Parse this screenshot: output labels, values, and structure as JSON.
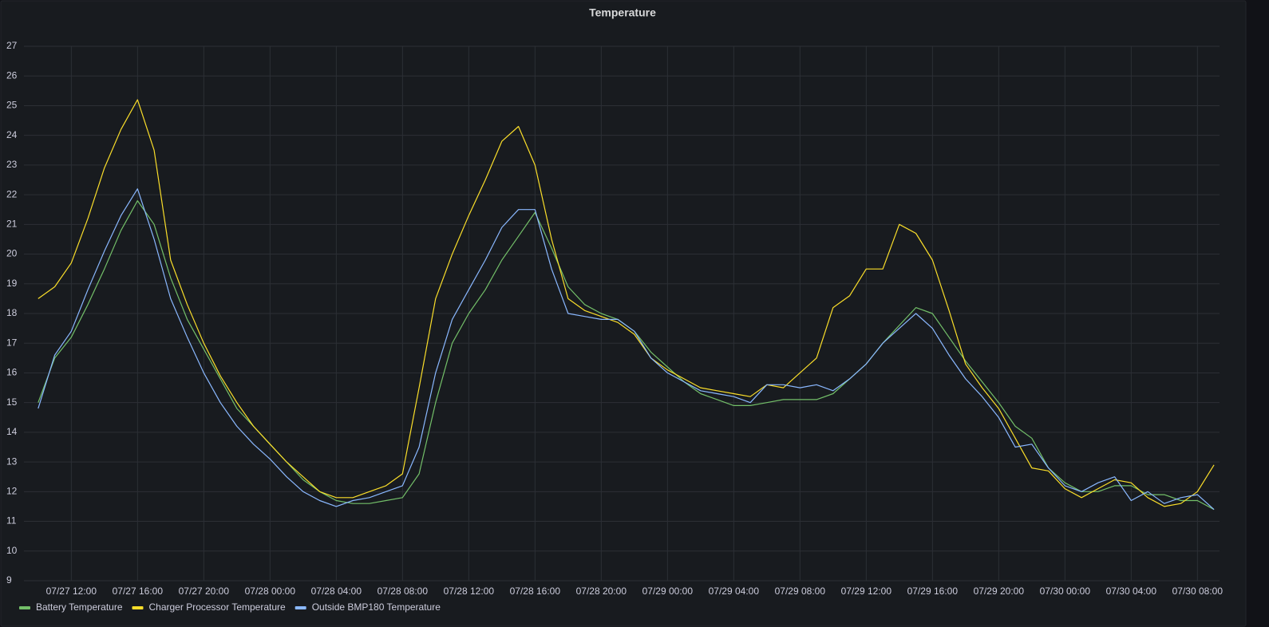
{
  "chart_data": {
    "type": "line",
    "title": "Temperature",
    "x": [
      "07/27 10:00",
      "07/27 11:00",
      "07/27 12:00",
      "07/27 13:00",
      "07/27 14:00",
      "07/27 15:00",
      "07/27 16:00",
      "07/27 17:00",
      "07/27 18:00",
      "07/27 19:00",
      "07/27 20:00",
      "07/27 21:00",
      "07/27 22:00",
      "07/27 23:00",
      "07/28 00:00",
      "07/28 01:00",
      "07/28 02:00",
      "07/28 03:00",
      "07/28 04:00",
      "07/28 05:00",
      "07/28 06:00",
      "07/28 07:00",
      "07/28 08:00",
      "07/28 09:00",
      "07/28 10:00",
      "07/28 11:00",
      "07/28 12:00",
      "07/28 13:00",
      "07/28 14:00",
      "07/28 15:00",
      "07/28 16:00",
      "07/28 17:00",
      "07/28 18:00",
      "07/28 19:00",
      "07/28 20:00",
      "07/28 21:00",
      "07/28 22:00",
      "07/28 23:00",
      "07/29 00:00",
      "07/29 01:00",
      "07/29 02:00",
      "07/29 03:00",
      "07/29 04:00",
      "07/29 05:00",
      "07/29 06:00",
      "07/29 07:00",
      "07/29 08:00",
      "07/29 09:00",
      "07/29 10:00",
      "07/29 11:00",
      "07/29 12:00",
      "07/29 13:00",
      "07/29 14:00",
      "07/29 15:00",
      "07/29 16:00",
      "07/29 17:00",
      "07/29 18:00",
      "07/29 19:00",
      "07/29 20:00",
      "07/29 21:00",
      "07/29 22:00",
      "07/29 23:00",
      "07/30 00:00",
      "07/30 01:00",
      "07/30 02:00",
      "07/30 03:00",
      "07/30 04:00",
      "07/30 05:00",
      "07/30 06:00",
      "07/30 07:00",
      "07/30 08:00",
      "07/30 09:00"
    ],
    "series": [
      {
        "name": "Battery Temperature",
        "color": "#73bf69",
        "values": [
          15.0,
          16.5,
          17.2,
          18.3,
          19.5,
          20.8,
          21.8,
          21.0,
          19.2,
          17.8,
          16.8,
          15.8,
          14.8,
          14.2,
          13.6,
          13.0,
          12.4,
          12.0,
          11.7,
          11.6,
          11.6,
          11.7,
          11.8,
          12.6,
          15.0,
          17.0,
          18.0,
          18.8,
          19.8,
          20.6,
          21.4,
          20.2,
          18.9,
          18.3,
          18.0,
          17.8,
          17.4,
          16.7,
          16.2,
          15.7,
          15.3,
          15.1,
          14.9,
          14.9,
          15.0,
          15.1,
          15.1,
          15.1,
          15.3,
          15.8,
          16.3,
          17.0,
          17.6,
          18.2,
          18.0,
          17.2,
          16.4,
          15.7,
          15.0,
          14.2,
          13.8,
          12.8,
          12.3,
          12.0,
          12.0,
          12.2,
          12.2,
          11.9,
          11.9,
          11.7,
          11.7,
          11.4
        ]
      },
      {
        "name": "Charger Processor Temperature",
        "color": "#fade2a",
        "values": [
          18.5,
          18.9,
          19.7,
          21.2,
          22.9,
          24.2,
          25.2,
          23.5,
          19.8,
          18.3,
          17.0,
          15.9,
          15.0,
          14.2,
          13.6,
          13.0,
          12.5,
          12.0,
          11.8,
          11.8,
          12.0,
          12.2,
          12.6,
          15.5,
          18.5,
          20.0,
          21.3,
          22.5,
          23.8,
          24.3,
          23.0,
          20.5,
          18.5,
          18.1,
          17.9,
          17.7,
          17.3,
          16.5,
          16.1,
          15.8,
          15.5,
          15.4,
          15.3,
          15.2,
          15.6,
          15.5,
          16.0,
          16.5,
          18.2,
          18.6,
          19.5,
          19.5,
          21.0,
          20.7,
          19.8,
          18.1,
          16.3,
          15.5,
          14.8,
          13.8,
          12.8,
          12.7,
          12.1,
          11.8,
          12.1,
          12.4,
          12.3,
          11.8,
          11.5,
          11.6,
          12.0,
          12.9
        ]
      },
      {
        "name": "Outside BMP180 Temperature",
        "color": "#8ab8ff",
        "values": [
          14.8,
          16.6,
          17.4,
          18.8,
          20.1,
          21.3,
          22.2,
          20.5,
          18.5,
          17.2,
          16.0,
          15.0,
          14.2,
          13.6,
          13.1,
          12.5,
          12.0,
          11.7,
          11.5,
          11.7,
          11.8,
          12.0,
          12.2,
          13.5,
          16.0,
          17.8,
          18.8,
          19.8,
          20.9,
          21.5,
          21.5,
          19.5,
          18.0,
          17.9,
          17.8,
          17.8,
          17.4,
          16.5,
          16.0,
          15.7,
          15.4,
          15.3,
          15.2,
          15.0,
          15.6,
          15.6,
          15.5,
          15.6,
          15.4,
          15.8,
          16.3,
          17.0,
          17.5,
          18.0,
          17.5,
          16.6,
          15.8,
          15.2,
          14.5,
          13.5,
          13.6,
          12.8,
          12.2,
          12.0,
          12.3,
          12.5,
          11.7,
          12.0,
          11.6,
          11.8,
          11.9,
          11.4
        ]
      }
    ],
    "xlim": [
      "07/27 09:20",
      "07/30 09:20"
    ],
    "xticks": [
      "07/27 12:00",
      "07/27 16:00",
      "07/27 20:00",
      "07/28 00:00",
      "07/28 04:00",
      "07/28 08:00",
      "07/28 12:00",
      "07/28 16:00",
      "07/28 20:00",
      "07/29 00:00",
      "07/29 04:00",
      "07/29 08:00",
      "07/29 12:00",
      "07/29 16:00",
      "07/29 20:00",
      "07/30 00:00",
      "07/30 04:00",
      "07/30 08:00"
    ],
    "ylim": [
      9,
      27
    ],
    "yticks": [
      9,
      10,
      11,
      12,
      13,
      14,
      15,
      16,
      17,
      18,
      19,
      20,
      21,
      22,
      23,
      24,
      25,
      26,
      27
    ],
    "grid": true
  }
}
